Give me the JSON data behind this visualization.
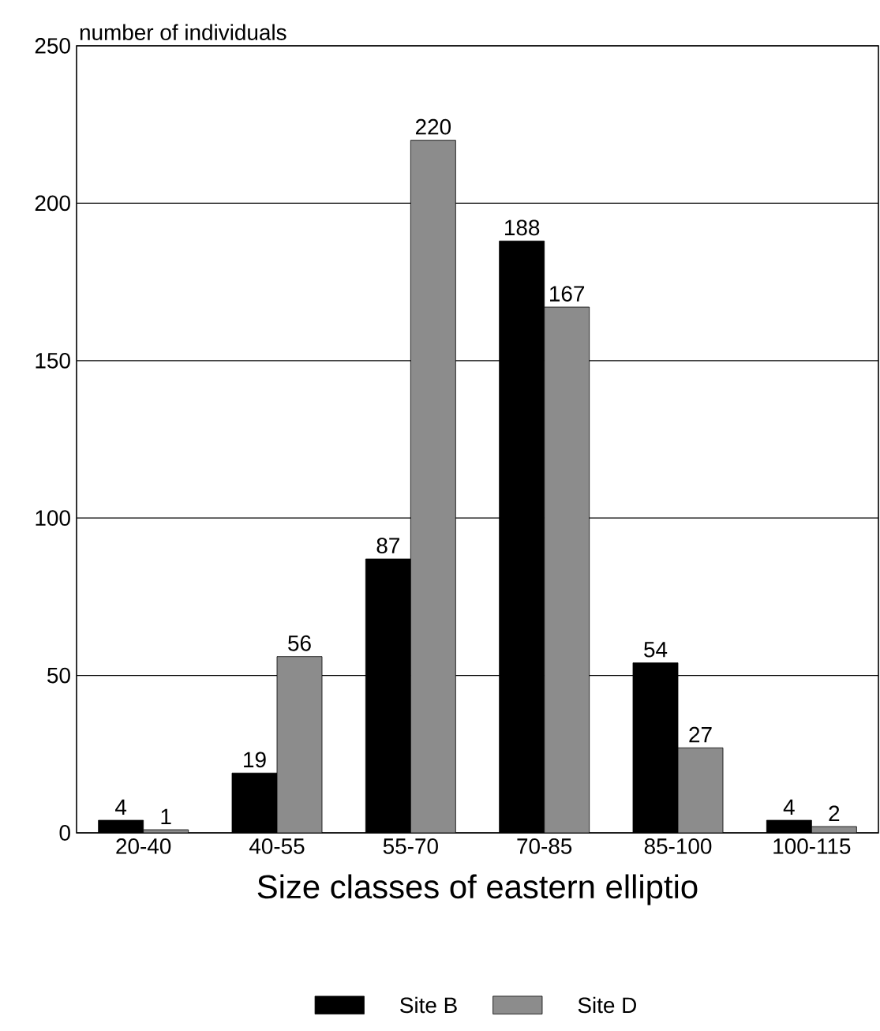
{
  "chart_data": {
    "type": "bar",
    "xlabel": "Size classes of eastern elliptio",
    "ylabel": "number of individuals",
    "categories": [
      "20-40",
      "40-55",
      "55-70",
      "70-85",
      "85-100",
      "100-115"
    ],
    "series": [
      {
        "name": "Site B",
        "color": "#000000",
        "values": [
          4,
          19,
          87,
          188,
          54,
          4
        ]
      },
      {
        "name": "Site D",
        "color": "#8c8c8c",
        "values": [
          1,
          56,
          220,
          167,
          27,
          2
        ]
      }
    ],
    "ylim": [
      0,
      250
    ],
    "yticks": [
      0,
      50,
      100,
      150,
      200,
      250
    ],
    "grid": "y",
    "legend": "bottom",
    "data_labels": true
  }
}
